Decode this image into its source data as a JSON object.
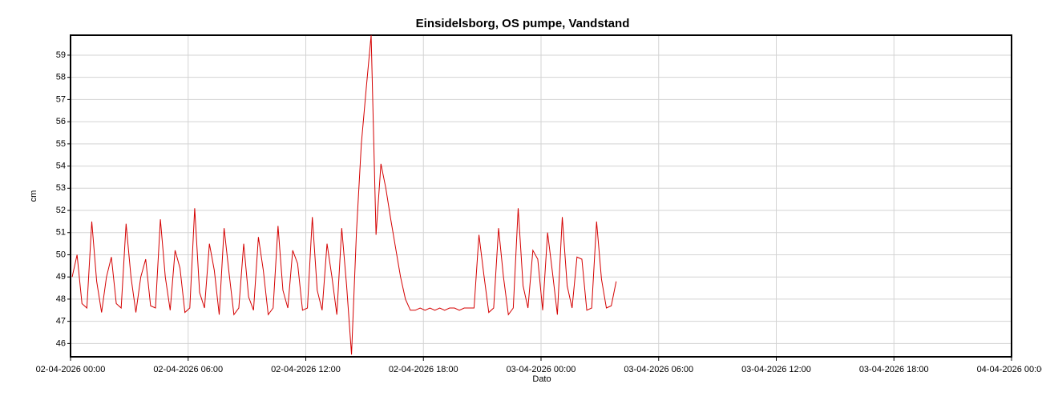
{
  "chart_data": {
    "type": "line",
    "title": "Einsidelsborg, OS pumpe, Vandstand",
    "x_label": "Dato",
    "y_label": "cm",
    "x": [
      "02-04-2026 00:05",
      "02-04-2026 00:20",
      "02-04-2026 00:35",
      "02-04-2026 00:50",
      "02-04-2026 01:05",
      "02-04-2026 01:20",
      "02-04-2026 01:35",
      "02-04-2026 01:50",
      "02-04-2026 02:05",
      "02-04-2026 02:20",
      "02-04-2026 02:35",
      "02-04-2026 02:50",
      "02-04-2026 03:05",
      "02-04-2026 03:20",
      "02-04-2026 03:35",
      "02-04-2026 03:50",
      "02-04-2026 04:05",
      "02-04-2026 04:20",
      "02-04-2026 04:35",
      "02-04-2026 04:50",
      "02-04-2026 05:05",
      "02-04-2026 05:20",
      "02-04-2026 05:35",
      "02-04-2026 05:50",
      "02-04-2026 06:05",
      "02-04-2026 06:20",
      "02-04-2026 06:35",
      "02-04-2026 06:50",
      "02-04-2026 07:05",
      "02-04-2026 07:20",
      "02-04-2026 07:35",
      "02-04-2026 07:50",
      "02-04-2026 08:05",
      "02-04-2026 08:20",
      "02-04-2026 08:35",
      "02-04-2026 08:50",
      "02-04-2026 09:05",
      "02-04-2026 09:20",
      "02-04-2026 09:35",
      "02-04-2026 09:50",
      "02-04-2026 10:05",
      "02-04-2026 10:20",
      "02-04-2026 10:35",
      "02-04-2026 10:50",
      "02-04-2026 11:05",
      "02-04-2026 11:20",
      "02-04-2026 11:35",
      "02-04-2026 11:50",
      "02-04-2026 12:05",
      "02-04-2026 12:20",
      "02-04-2026 12:35",
      "02-04-2026 12:50",
      "02-04-2026 13:05",
      "02-04-2026 13:20",
      "02-04-2026 13:35",
      "02-04-2026 13:50",
      "02-04-2026 14:05",
      "02-04-2026 14:20",
      "02-04-2026 14:35",
      "02-04-2026 14:50",
      "02-04-2026 15:05",
      "02-04-2026 15:20",
      "02-04-2026 15:35",
      "02-04-2026 15:50",
      "02-04-2026 16:05",
      "02-04-2026 16:20",
      "02-04-2026 16:35",
      "02-04-2026 16:50",
      "02-04-2026 17:05",
      "02-04-2026 17:20",
      "02-04-2026 17:35",
      "02-04-2026 17:50",
      "02-04-2026 18:05",
      "02-04-2026 18:20",
      "02-04-2026 18:35",
      "02-04-2026 18:50",
      "02-04-2026 19:05",
      "02-04-2026 19:20",
      "02-04-2026 19:35",
      "02-04-2026 19:50",
      "02-04-2026 20:05",
      "02-04-2026 20:20",
      "02-04-2026 20:35",
      "02-04-2026 20:50",
      "02-04-2026 21:05",
      "02-04-2026 21:20",
      "02-04-2026 21:35",
      "02-04-2026 21:50",
      "02-04-2026 22:05",
      "02-04-2026 22:20",
      "02-04-2026 22:35",
      "02-04-2026 22:50",
      "02-04-2026 23:05",
      "02-04-2026 23:20",
      "02-04-2026 23:35",
      "02-04-2026 23:50",
      "03-04-2026 00:05",
      "03-04-2026 00:20",
      "03-04-2026 00:35",
      "03-04-2026 00:50",
      "03-04-2026 01:05",
      "03-04-2026 01:20",
      "03-04-2026 01:35",
      "03-04-2026 01:50",
      "03-04-2026 02:05",
      "03-04-2026 02:20",
      "03-04-2026 02:35",
      "03-04-2026 02:50",
      "03-04-2026 03:05",
      "03-04-2026 03:20",
      "03-04-2026 03:35",
      "03-04-2026 03:50"
    ],
    "series": [
      {
        "name": "Vandstand",
        "color": "#d40000",
        "values": [
          49.0,
          50.0,
          47.8,
          47.6,
          51.5,
          48.8,
          47.4,
          49.0,
          49.9,
          47.8,
          47.6,
          51.4,
          49.0,
          47.4,
          49.0,
          49.8,
          47.7,
          47.6,
          51.6,
          49.0,
          47.5,
          50.2,
          49.4,
          47.4,
          47.6,
          52.1,
          48.3,
          47.6,
          50.5,
          49.3,
          47.3,
          51.2,
          49.2,
          47.3,
          47.6,
          50.5,
          48.1,
          47.5,
          50.8,
          49.3,
          47.3,
          47.6,
          51.3,
          48.4,
          47.6,
          50.2,
          49.6,
          47.5,
          47.6,
          51.7,
          48.4,
          47.5,
          50.5,
          49.0,
          47.3,
          51.2,
          48.6,
          45.5,
          51.0,
          55.0,
          57.5,
          59.9,
          50.9,
          54.1,
          53.0,
          51.6,
          50.3,
          49.0,
          48.0,
          47.5,
          47.5,
          47.6,
          47.5,
          47.6,
          47.5,
          47.6,
          47.5,
          47.6,
          47.6,
          47.5,
          47.6,
          47.6,
          47.6,
          50.9,
          49.1,
          47.4,
          47.6,
          51.2,
          49.0,
          47.3,
          47.6,
          52.1,
          48.6,
          47.6,
          50.2,
          49.8,
          47.5,
          51.0,
          49.2,
          47.3,
          51.7,
          48.6,
          47.6,
          49.9,
          49.8,
          47.5,
          47.6,
          51.5,
          48.9,
          47.6,
          47.7,
          48.8
        ]
      }
    ],
    "xlim": [
      "02-04-2026 00:00",
      "04-04-2026 00:00"
    ],
    "xticks": [
      "02-04-2026 00:00",
      "02-04-2026 06:00",
      "02-04-2026 12:00",
      "02-04-2026 18:00",
      "03-04-2026 00:00",
      "03-04-2026 06:00",
      "03-04-2026 12:00",
      "03-04-2026 18:00",
      "04-04-2026 00:00"
    ],
    "ylim": [
      45.4,
      59.9
    ],
    "yticks": [
      46,
      47,
      48,
      49,
      50,
      51,
      52,
      53,
      54,
      55,
      56,
      57,
      58,
      59
    ],
    "grid": true
  }
}
